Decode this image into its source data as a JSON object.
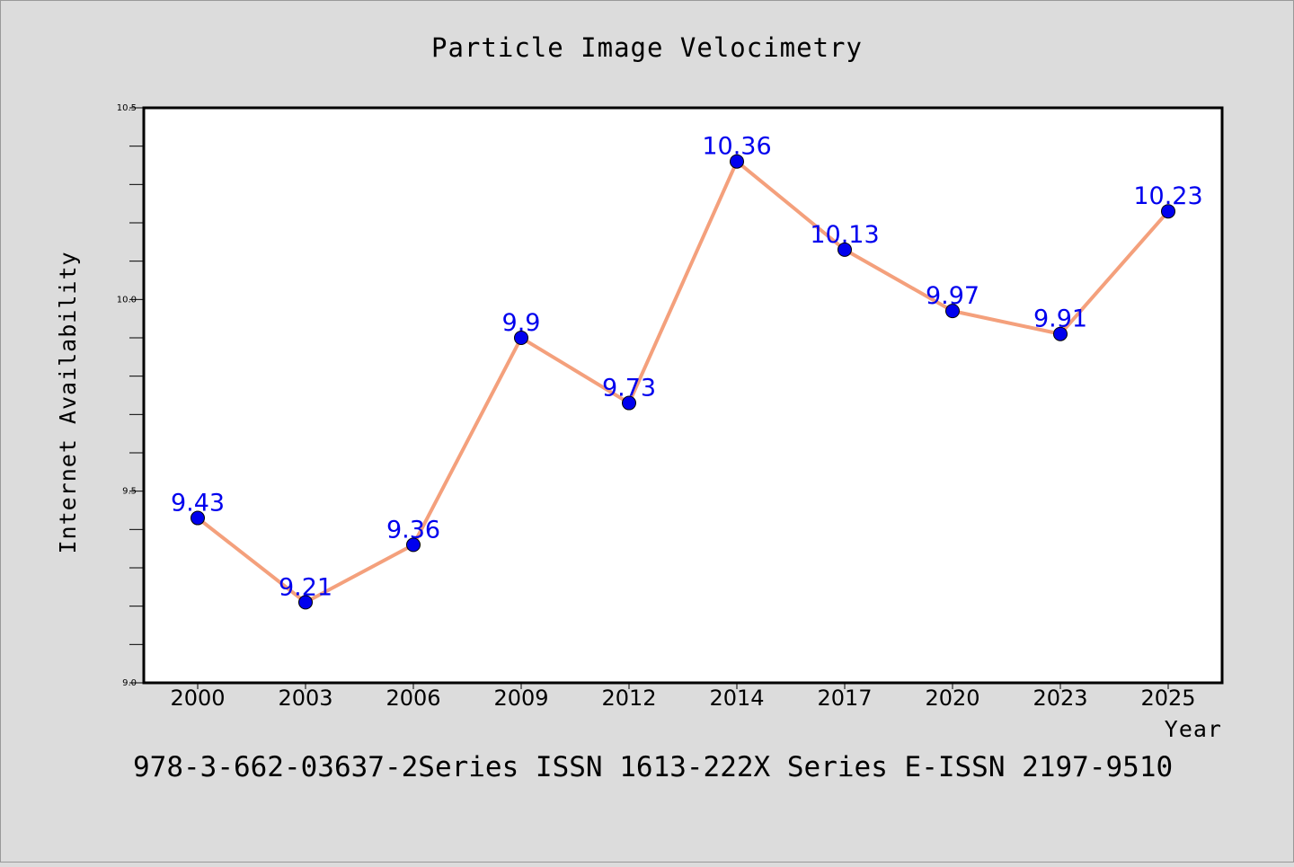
{
  "chart_data": {
    "type": "line",
    "title": "Particle Image Velocimetry",
    "xlabel": "Year",
    "ylabel": "Internet Availability",
    "categories": [
      "2000",
      "2003",
      "2006",
      "2009",
      "2012",
      "2014",
      "2017",
      "2020",
      "2023",
      "2025"
    ],
    "series": [
      {
        "values": [
          9.43,
          9.21,
          9.36,
          9.9,
          9.73,
          10.36,
          10.13,
          9.97,
          9.91,
          10.23
        ],
        "labels": [
          "9.43",
          "9.21",
          "9.36",
          "9.9",
          "9.73",
          "10.36",
          "10.13",
          "9.97",
          "9.91",
          "10.23"
        ]
      }
    ],
    "ylim": [
      9.0,
      10.5
    ],
    "yticks": [
      "9.0",
      "9.5",
      "10.0",
      "10.5"
    ],
    "grid": false,
    "line_color": "#f4a07c",
    "marker_color": "#0000ee",
    "label_color": "#0000ee",
    "footer": "978-3-662-03637-2Series ISSN 1613-222X Series E-ISSN 2197-9510"
  }
}
